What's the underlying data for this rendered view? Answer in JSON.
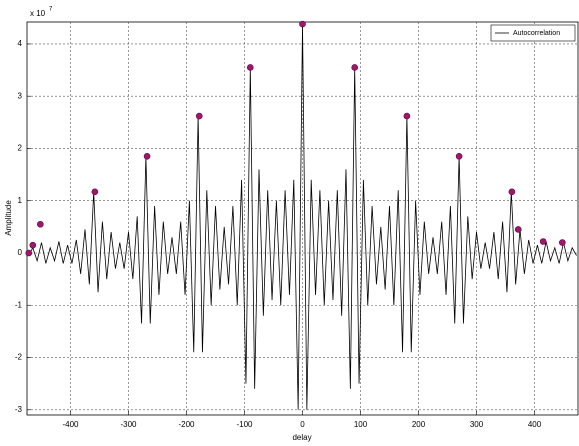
{
  "chart_data": {
    "type": "line",
    "y_multiplier": "x 10",
    "y_exponent": "7",
    "xlabel": "delay",
    "ylabel": "Amplitude",
    "xlim": [
      -475,
      475
    ],
    "ylim": [
      -3.1,
      4.42
    ],
    "xticks": [
      -400,
      -300,
      -200,
      -100,
      0,
      100,
      200,
      300,
      400
    ],
    "yticks": [
      -3,
      -2,
      -1,
      0,
      1,
      2,
      3,
      4
    ],
    "grid": true,
    "legend": "upper right",
    "series": [
      {
        "name": "Autocorrelation",
        "color": "#000000",
        "x": [
          -472.5,
          -465,
          -457.5,
          -450,
          -442.5,
          -435,
          -427.5,
          -420,
          -412.5,
          -405,
          -397.5,
          -390,
          -382.5,
          -375,
          -367.5,
          -360,
          -352.5,
          -345,
          -337.5,
          -330,
          -322.5,
          -315,
          -307.5,
          -300,
          -292.5,
          -285,
          -277.5,
          -270,
          -262.5,
          -255,
          -247.5,
          -240,
          -232.5,
          -225,
          -217.5,
          -210,
          -202.5,
          -195,
          -187.5,
          -180,
          -172.5,
          -165,
          -157.5,
          -150,
          -142.5,
          -135,
          -127.5,
          -120,
          -112.5,
          -105,
          -97.5,
          -90,
          -82.5,
          -75,
          -67.5,
          -60,
          -52.5,
          -45,
          -37.5,
          -30,
          -22.5,
          -15,
          -7.5,
          0,
          7.5,
          15,
          22.5,
          30,
          37.5,
          45,
          52.5,
          60,
          67.5,
          75,
          82.5,
          90,
          97.5,
          105,
          112.5,
          120,
          127.5,
          135,
          142.5,
          150,
          157.5,
          165,
          172.5,
          180,
          187.5,
          195,
          202.5,
          210,
          217.5,
          225,
          232.5,
          240,
          247.5,
          255,
          262.5,
          270,
          277.5,
          285,
          292.5,
          300,
          307.5,
          315,
          322.5,
          330,
          337.5,
          345,
          352.5,
          360,
          367.5,
          375,
          382.5,
          390,
          397.5,
          405,
          412.5,
          420,
          427.5,
          435,
          442.5,
          450,
          457.5,
          465,
          472.5
        ],
        "values": [
          -0.05,
          0.1,
          -0.15,
          0.2,
          -0.2,
          0.1,
          -0.15,
          0.22,
          -0.2,
          0.15,
          -0.2,
          0.25,
          -0.4,
          0.45,
          -0.6,
          1.17,
          -0.75,
          0.6,
          -0.5,
          0.4,
          -0.3,
          0.2,
          -0.3,
          0.4,
          -0.5,
          0.7,
          -1.35,
          1.85,
          -1.35,
          0.9,
          -0.8,
          0.6,
          -0.4,
          0.3,
          -0.4,
          0.6,
          -0.8,
          1.0,
          -1.9,
          2.62,
          -1.9,
          1.2,
          -1.0,
          0.9,
          -0.7,
          0.5,
          -0.6,
          0.9,
          -1.0,
          1.4,
          -2.5,
          3.55,
          -2.6,
          1.6,
          -1.2,
          1.2,
          -0.9,
          1.0,
          -1.0,
          1.2,
          -0.8,
          1.4,
          -3.0,
          4.38,
          -3.0,
          1.4,
          -0.8,
          1.2,
          -1.0,
          1.0,
          -0.9,
          1.2,
          -1.2,
          1.6,
          -2.6,
          3.55,
          -2.5,
          1.4,
          -1.0,
          0.9,
          -0.6,
          0.5,
          -0.7,
          0.9,
          -1.0,
          1.2,
          -1.9,
          2.62,
          -1.9,
          1.0,
          -0.8,
          0.6,
          -0.4,
          0.3,
          -0.4,
          0.6,
          -0.8,
          0.9,
          -1.35,
          1.85,
          -1.35,
          0.7,
          -0.5,
          0.4,
          -0.3,
          0.2,
          -0.3,
          0.4,
          -0.5,
          0.6,
          -0.75,
          1.17,
          -0.6,
          0.45,
          -0.4,
          0.25,
          -0.2,
          0.15,
          -0.2,
          0.22,
          -0.15,
          0.1,
          -0.2,
          0.2,
          -0.15,
          0.1,
          -0.05
        ]
      },
      {
        "type": "scatter",
        "color": "#a3146e",
        "x": [
          -472,
          -465,
          -452,
          -358,
          -268,
          -178,
          -90,
          0,
          90,
          180,
          270,
          361,
          372,
          415,
          448
        ],
        "values": [
          0,
          0.15,
          0.55,
          1.17,
          1.85,
          2.62,
          3.55,
          4.38,
          3.55,
          2.62,
          1.85,
          1.17,
          0.45,
          0.22,
          0.2
        ]
      }
    ]
  }
}
